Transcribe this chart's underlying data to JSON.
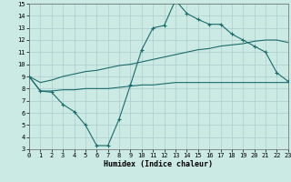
{
  "bg_color": "#cceae4",
  "line_color": "#1a6b6b",
  "grid_color": "#aacccc",
  "xlabel": "Humidex (Indice chaleur)",
  "xlim": [
    0,
    23
  ],
  "ylim": [
    3,
    15
  ],
  "xticks": [
    0,
    1,
    2,
    3,
    4,
    5,
    6,
    7,
    8,
    9,
    10,
    11,
    12,
    13,
    14,
    15,
    16,
    17,
    18,
    19,
    20,
    21,
    22,
    23
  ],
  "yticks": [
    3,
    4,
    5,
    6,
    7,
    8,
    9,
    10,
    11,
    12,
    13,
    14,
    15
  ],
  "wiggle_x": [
    0,
    1,
    2,
    3,
    4,
    5,
    6,
    7,
    8,
    9,
    10,
    11,
    12,
    13,
    14,
    15,
    16,
    17,
    18,
    19,
    20,
    21,
    22,
    23
  ],
  "wiggle_y": [
    9.0,
    7.8,
    7.7,
    6.7,
    6.1,
    5.0,
    3.3,
    3.3,
    5.5,
    8.3,
    11.2,
    13.0,
    13.2,
    15.3,
    14.2,
    13.7,
    13.3,
    13.3,
    12.5,
    12.0,
    11.5,
    11.0,
    9.3,
    8.6
  ],
  "upper_x": [
    0,
    1,
    2,
    3,
    4,
    5,
    6,
    7,
    8,
    9,
    10,
    11,
    12,
    13,
    14,
    15,
    16,
    17,
    18,
    19,
    20,
    21,
    22,
    23
  ],
  "upper_y": [
    9.0,
    8.5,
    8.7,
    9.0,
    9.2,
    9.4,
    9.5,
    9.7,
    9.9,
    10.0,
    10.2,
    10.4,
    10.6,
    10.8,
    11.0,
    11.2,
    11.3,
    11.5,
    11.6,
    11.7,
    11.9,
    12.0,
    12.0,
    11.8
  ],
  "lower_x": [
    0,
    1,
    2,
    3,
    4,
    5,
    6,
    7,
    8,
    9,
    10,
    11,
    12,
    13,
    14,
    15,
    16,
    17,
    18,
    19,
    20,
    21,
    22,
    23
  ],
  "lower_y": [
    9.0,
    7.8,
    7.8,
    7.9,
    7.9,
    8.0,
    8.0,
    8.0,
    8.1,
    8.2,
    8.3,
    8.3,
    8.4,
    8.5,
    8.5,
    8.5,
    8.5,
    8.5,
    8.5,
    8.5,
    8.5,
    8.5,
    8.5,
    8.5
  ]
}
